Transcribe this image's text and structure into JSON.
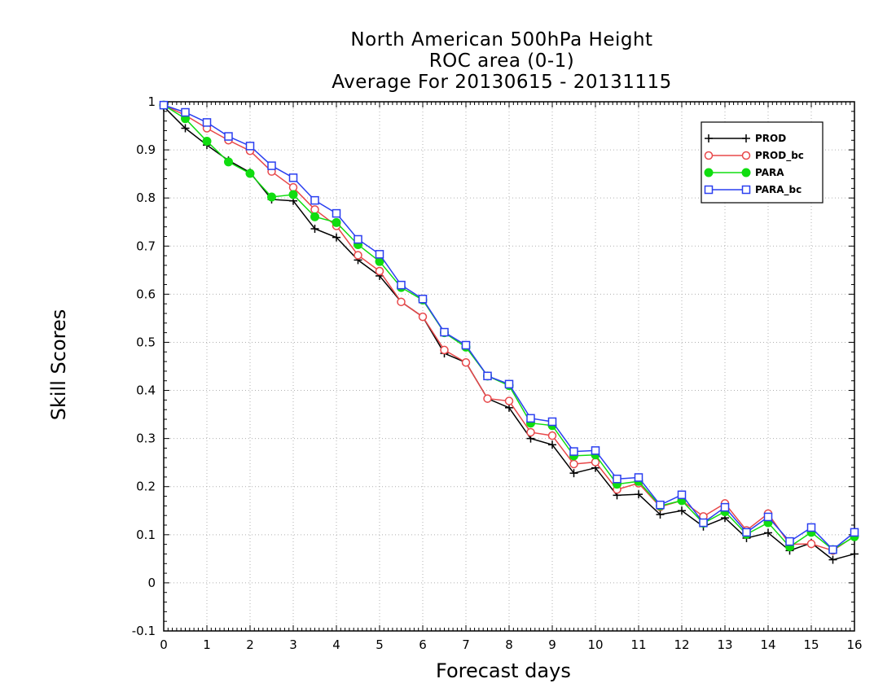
{
  "chart_data": {
    "type": "line",
    "title": [
      "North American 500hPa Height",
      "ROC area (0-1)",
      "Average For 20130615 - 20131115"
    ],
    "xlabel": "Forecast days",
    "ylabel": "Skill Scores",
    "xlim": [
      0,
      16
    ],
    "ylim": [
      -0.1,
      1
    ],
    "xticks": [
      "0",
      "1",
      "2",
      "3",
      "4",
      "5",
      "6",
      "7",
      "8",
      "9",
      "10",
      "11",
      "12",
      "13",
      "14",
      "15",
      "16"
    ],
    "yticks": [
      "-0.1",
      "0",
      "0.1",
      "0.2",
      "0.3",
      "0.4",
      "0.5",
      "0.6",
      "0.7",
      "0.8",
      "0.9",
      "1"
    ],
    "grid": true,
    "legend_position": "top-right",
    "x": [
      0,
      0.5,
      1,
      1.5,
      2,
      2.5,
      3,
      3.5,
      4,
      4.5,
      5,
      5.5,
      6,
      6.5,
      7,
      7.5,
      8,
      8.5,
      9,
      9.5,
      10,
      10.5,
      11,
      11.5,
      12,
      12.5,
      13,
      13.5,
      14,
      14.5,
      15,
      15.5,
      16
    ],
    "series": [
      {
        "name": "PROD",
        "color": "#000000",
        "marker": "plus",
        "values": [
          0.99,
          0.945,
          0.91,
          0.878,
          0.853,
          0.797,
          0.794,
          0.736,
          0.718,
          0.671,
          0.638,
          0.584,
          0.553,
          0.477,
          0.458,
          0.383,
          0.364,
          0.3,
          0.287,
          0.228,
          0.239,
          0.182,
          0.184,
          0.142,
          0.15,
          0.117,
          0.135,
          0.093,
          0.104,
          0.067,
          0.083,
          0.048,
          0.06
        ]
      },
      {
        "name": "PROD_bc",
        "color": "#e8484a",
        "marker": "circle-open",
        "values": [
          0.993,
          0.972,
          0.945,
          0.92,
          0.898,
          0.855,
          0.822,
          0.776,
          0.742,
          0.681,
          0.648,
          0.584,
          0.553,
          0.484,
          0.458,
          0.383,
          0.378,
          0.313,
          0.306,
          0.247,
          0.251,
          0.194,
          0.207,
          0.158,
          0.171,
          0.138,
          0.165,
          0.109,
          0.144,
          0.08,
          0.081,
          0.067,
          0.097
        ]
      },
      {
        "name": "PARA",
        "color": "#10dd10",
        "marker": "circle-filled",
        "values": [
          0.993,
          0.965,
          0.918,
          0.875,
          0.851,
          0.802,
          0.807,
          0.761,
          0.749,
          0.703,
          0.668,
          0.614,
          0.588,
          0.52,
          0.49,
          0.43,
          0.41,
          0.332,
          0.327,
          0.264,
          0.266,
          0.205,
          0.211,
          0.16,
          0.171,
          0.124,
          0.148,
          0.101,
          0.125,
          0.075,
          0.105,
          0.069,
          0.096
        ]
      },
      {
        "name": "PARA_bc",
        "color": "#2a3ff0",
        "marker": "square-open",
        "values": [
          0.993,
          0.978,
          0.957,
          0.928,
          0.908,
          0.867,
          0.842,
          0.795,
          0.768,
          0.714,
          0.683,
          0.619,
          0.59,
          0.521,
          0.494,
          0.43,
          0.413,
          0.342,
          0.335,
          0.273,
          0.275,
          0.216,
          0.219,
          0.162,
          0.183,
          0.125,
          0.157,
          0.105,
          0.137,
          0.086,
          0.115,
          0.069,
          0.105
        ]
      }
    ]
  }
}
